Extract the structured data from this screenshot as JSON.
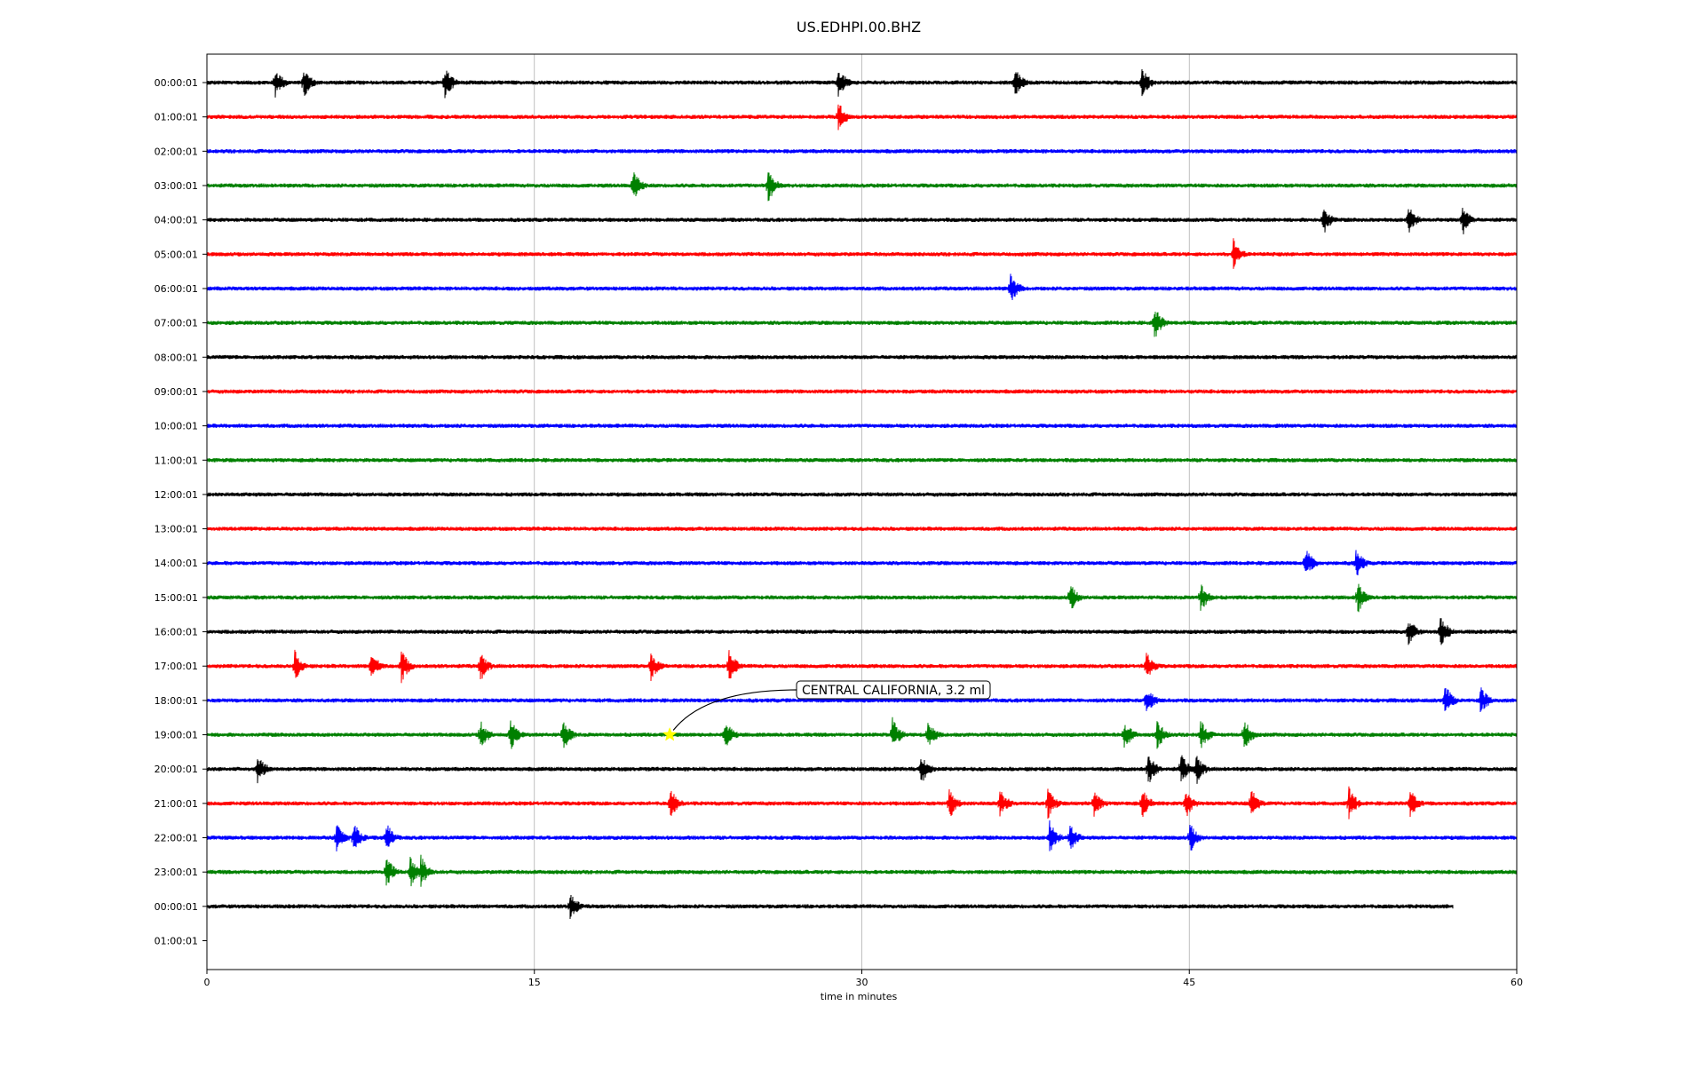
{
  "chart_data": {
    "type": "line",
    "title": "US.EDHPI.00.BHZ",
    "xlabel": "time in minutes",
    "ylabel": "",
    "xlim": [
      0,
      60
    ],
    "xticks": [
      0,
      15,
      30,
      45,
      60
    ],
    "vertical_grid": true,
    "row_labels": [
      "00:00:01",
      "01:00:01",
      "02:00:01",
      "03:00:01",
      "04:00:01",
      "05:00:01",
      "06:00:01",
      "07:00:01",
      "08:00:01",
      "09:00:01",
      "10:00:01",
      "11:00:01",
      "12:00:01",
      "13:00:01",
      "14:00:01",
      "15:00:01",
      "16:00:01",
      "17:00:01",
      "18:00:01",
      "19:00:01",
      "20:00:01",
      "21:00:01",
      "22:00:01",
      "23:00:01",
      "00:00:01",
      "01:00:01"
    ],
    "trace_colors": [
      "#000000",
      "#ff0000",
      "#0000ff",
      "#008000"
    ],
    "trace_end_minutes": [
      60,
      60,
      60,
      60,
      60,
      60,
      60,
      60,
      60,
      60,
      60,
      60,
      60,
      60,
      60,
      60,
      60,
      60,
      60,
      60,
      60,
      60,
      60,
      60,
      57.1,
      0
    ],
    "events": [
      {
        "row": 0,
        "times": [
          3.1,
          4.4,
          10.9,
          28.9,
          37.0,
          42.8
        ]
      },
      {
        "row": 1,
        "times": [
          28.9
        ]
      },
      {
        "row": 3,
        "times": [
          19.5,
          25.7
        ]
      },
      {
        "row": 4,
        "times": [
          51.1,
          55.0,
          57.5
        ]
      },
      {
        "row": 5,
        "times": [
          47.0
        ]
      },
      {
        "row": 6,
        "times": [
          36.8
        ]
      },
      {
        "row": 7,
        "times": [
          43.4
        ]
      },
      {
        "row": 14,
        "times": [
          50.3,
          52.6
        ]
      },
      {
        "row": 15,
        "times": [
          39.5,
          45.5,
          52.7
        ]
      },
      {
        "row": 16,
        "times": [
          55.0,
          56.5
        ]
      },
      {
        "row": 17,
        "times": [
          4.0,
          7.5,
          8.9,
          12.5,
          20.3,
          23.9,
          43.0
        ]
      },
      {
        "row": 18,
        "times": [
          43.0,
          56.7,
          58.3
        ]
      },
      {
        "row": 19,
        "times": [
          12.5,
          13.9,
          16.3,
          23.7,
          31.4,
          33.0,
          42.0,
          43.5,
          45.5,
          47.5
        ]
      },
      {
        "row": 20,
        "times": [
          2.3,
          32.7,
          43.1,
          44.6,
          45.3
        ]
      },
      {
        "row": 21,
        "times": [
          21.2,
          34.0,
          36.3,
          38.5,
          40.6,
          42.8,
          44.8,
          47.8,
          52.3,
          55.1
        ]
      },
      {
        "row": 22,
        "times": [
          5.9,
          6.7,
          8.2,
          38.6,
          39.5,
          45.0
        ]
      },
      {
        "row": 23,
        "times": [
          8.2,
          9.3,
          9.8
        ]
      },
      {
        "row": 24,
        "times": [
          16.6
        ]
      }
    ],
    "annotation": {
      "text": "CENTRAL CALIFORNIA, 3.2 ml",
      "row": 19,
      "time_minutes": 21.2,
      "marker": "star",
      "marker_color": "#ffff00"
    }
  }
}
